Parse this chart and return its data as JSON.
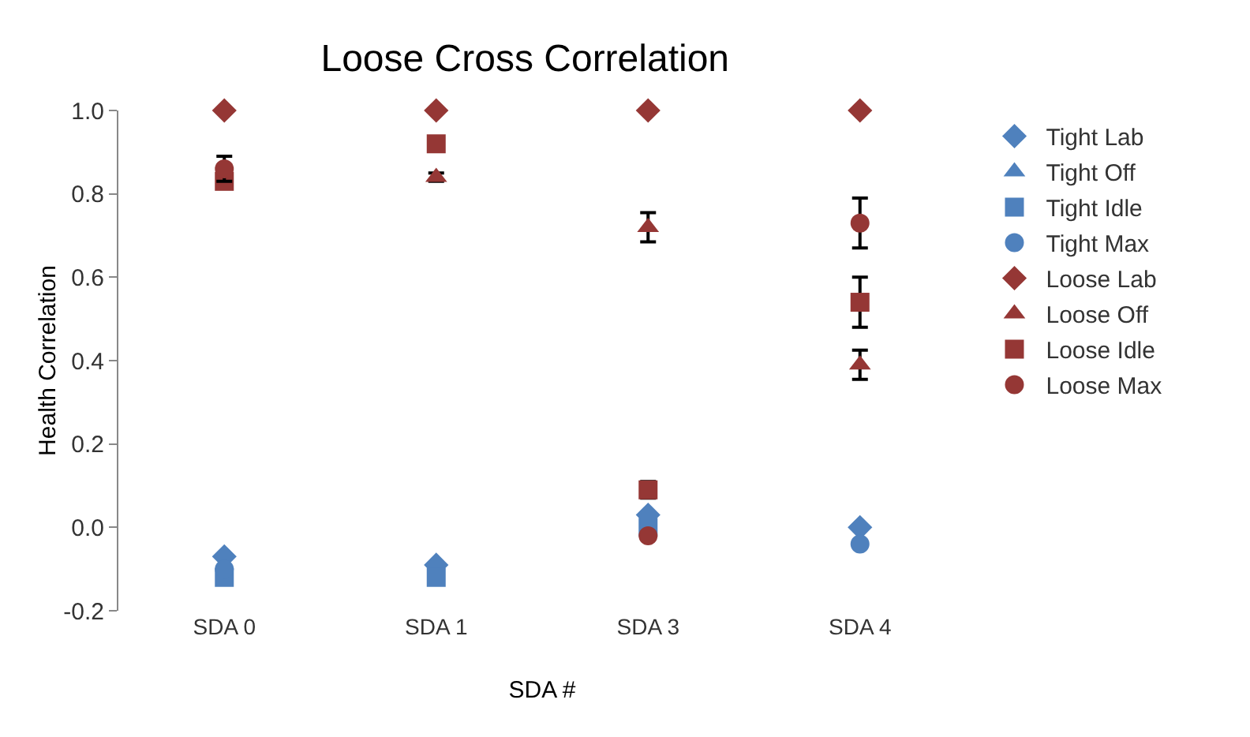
{
  "chart_data": {
    "type": "scatter",
    "title": "Loose Cross Correlation",
    "xlabel": "SDA #",
    "ylabel": "Health Correlation",
    "categories": [
      "SDA 0",
      "SDA 1",
      "SDA 3",
      "SDA 4"
    ],
    "ylim": [
      -0.2,
      1.0
    ],
    "yticks": [
      {
        "value": -0.2,
        "label": "-0.2"
      },
      {
        "value": 0,
        "label": "0.0"
      },
      {
        "value": 0.2,
        "label": "0.2"
      },
      {
        "value": 0.4,
        "label": "0.4"
      },
      {
        "value": 0.6,
        "label": "0.6"
      },
      {
        "value": 0.8,
        "label": "0.8"
      },
      {
        "value": 1,
        "label": "1.0"
      }
    ],
    "grid": false,
    "legend": "right",
    "series": [
      {
        "name": "Tight Lab",
        "color": "#4f81bd",
        "marker": "diamond",
        "values": [
          -0.07,
          -0.09,
          0.03,
          0.0
        ]
      },
      {
        "name": "Tight Off",
        "color": "#4f81bd",
        "marker": "triangle",
        "values": [
          null,
          null,
          null,
          null
        ]
      },
      {
        "name": "Tight Idle",
        "color": "#4f81bd",
        "marker": "square",
        "values": [
          -0.12,
          -0.12,
          0.0,
          null
        ]
      },
      {
        "name": "Tight Max",
        "color": "#4f81bd",
        "marker": "circle",
        "values": [
          -0.1,
          null,
          null,
          -0.04
        ]
      },
      {
        "name": "Loose Lab",
        "color": "#953735",
        "marker": "diamond",
        "values": [
          1.0,
          1.0,
          1.0,
          1.0
        ]
      },
      {
        "name": "Loose Off",
        "color": "#953735",
        "marker": "triangle",
        "values": [
          null,
          0.84,
          0.72,
          0.39
        ],
        "errors": [
          null,
          0.01,
          0.035,
          0.035
        ]
      },
      {
        "name": "Loose Idle",
        "color": "#953735",
        "marker": "square",
        "values": [
          0.83,
          0.92,
          0.09,
          0.54
        ],
        "errors": [
          null,
          null,
          0.02,
          0.06
        ]
      },
      {
        "name": "Loose Max",
        "color": "#953735",
        "marker": "circle",
        "values": [
          0.86,
          null,
          -0.02,
          0.73
        ],
        "errors": [
          0.03,
          null,
          null,
          0.06
        ]
      }
    ]
  }
}
